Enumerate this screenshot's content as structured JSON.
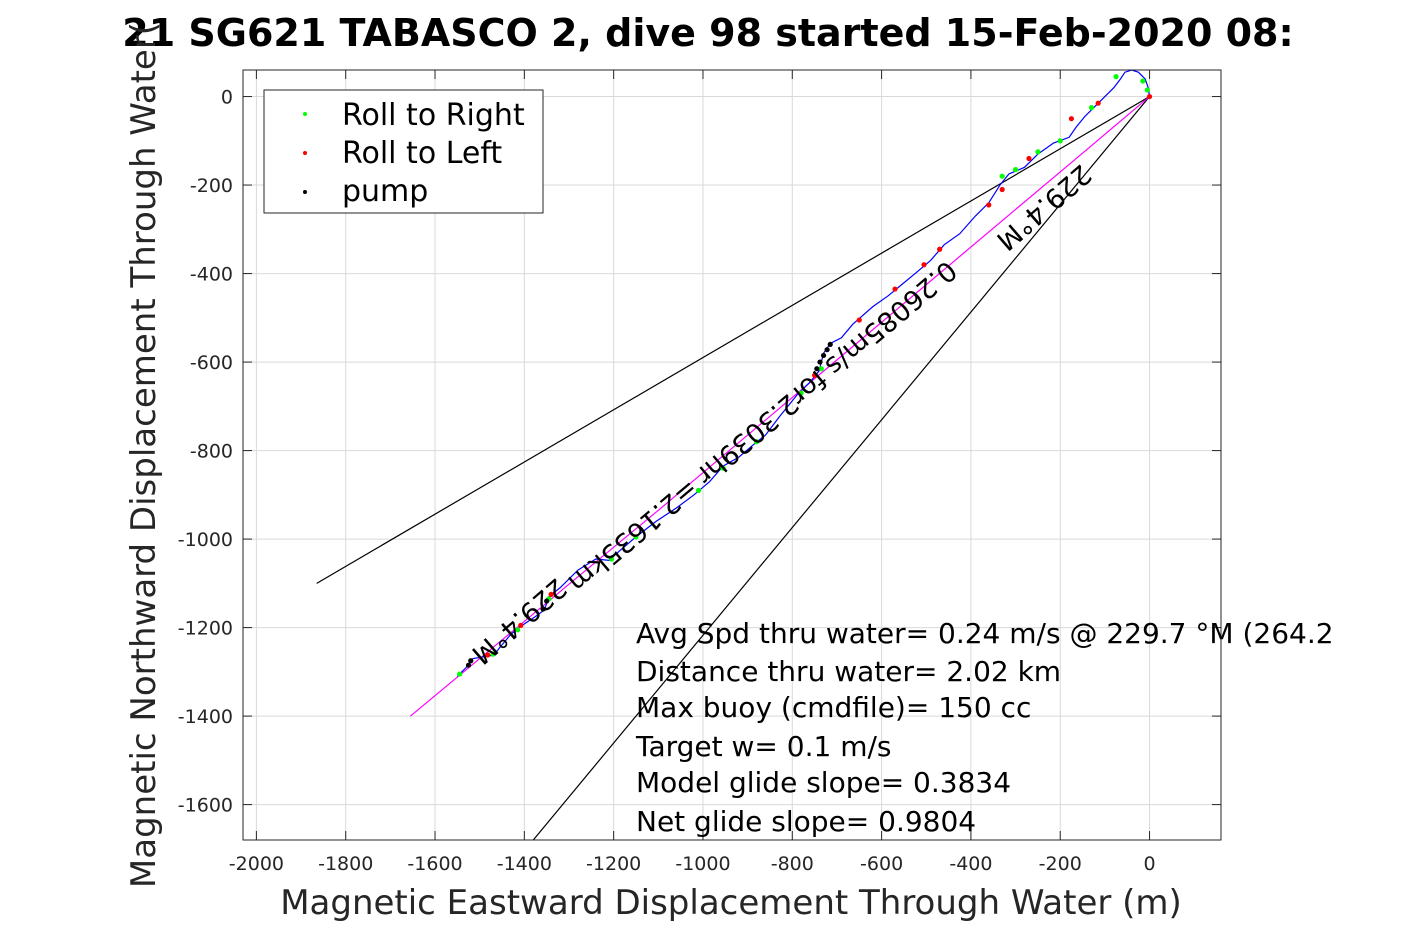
{
  "title": "21 SG621 TABASCO 2, dive 98 started 15-Feb-2020 08:",
  "chart_data": {
    "type": "scatter",
    "xlabel": "Magnetic Eastward Displacement Through Water (m)",
    "ylabel": "Magnetic Northward Displacement Through Water(",
    "xlim": [
      -2030,
      160
    ],
    "ylim": [
      -1680,
      60
    ],
    "xticks": [
      "-2000",
      "-1800",
      "-1600",
      "-1400",
      "-1200",
      "-1000",
      "-800",
      "-600",
      "-400",
      "-200",
      "0"
    ],
    "yticks": [
      "0",
      "-200",
      "-400",
      "-600",
      "-800",
      "-1000",
      "-1200",
      "-1400",
      "-1600"
    ],
    "grid": true,
    "legend_position": "top-left",
    "legend": [
      {
        "label": "Roll to Right",
        "color": "#00ff00"
      },
      {
        "label": "Roll to Left",
        "color": "#ff0000"
      },
      {
        "label": "pump",
        "color": "#000000"
      }
    ],
    "track": [
      [
        -1550,
        -1310
      ],
      [
        -1530,
        -1290
      ],
      [
        -1515,
        -1270
      ],
      [
        -1490,
        -1266
      ],
      [
        -1468,
        -1262
      ],
      [
        -1455,
        -1245
      ],
      [
        -1430,
        -1215
      ],
      [
        -1405,
        -1195
      ],
      [
        -1375,
        -1175
      ],
      [
        -1355,
        -1160
      ],
      [
        -1345,
        -1130
      ],
      [
        -1320,
        -1110
      ],
      [
        -1280,
        -1070
      ],
      [
        -1240,
        -1045
      ],
      [
        -1210,
        -1048
      ],
      [
        -1185,
        -1025
      ],
      [
        -1150,
        -995
      ],
      [
        -1105,
        -960
      ],
      [
        -1060,
        -930
      ],
      [
        -1020,
        -900
      ],
      [
        -985,
        -870
      ],
      [
        -955,
        -835
      ],
      [
        -920,
        -815
      ],
      [
        -885,
        -785
      ],
      [
        -860,
        -765
      ],
      [
        -830,
        -725
      ],
      [
        -790,
        -675
      ],
      [
        -760,
        -645
      ],
      [
        -740,
        -620
      ],
      [
        -730,
        -580
      ],
      [
        -715,
        -558
      ],
      [
        -690,
        -545
      ],
      [
        -665,
        -515
      ],
      [
        -620,
        -475
      ],
      [
        -585,
        -450
      ],
      [
        -555,
        -425
      ],
      [
        -525,
        -400
      ],
      [
        -490,
        -370
      ],
      [
        -460,
        -335
      ],
      [
        -425,
        -310
      ],
      [
        -390,
        -270
      ],
      [
        -360,
        -240
      ],
      [
        -335,
        -200
      ],
      [
        -315,
        -175
      ],
      [
        -280,
        -160
      ],
      [
        -250,
        -130
      ],
      [
        -215,
        -105
      ],
      [
        -180,
        -92
      ],
      [
        -165,
        -70
      ],
      [
        -145,
        -45
      ],
      [
        -120,
        -20
      ],
      [
        -100,
        0
      ],
      [
        -80,
        20
      ],
      [
        -65,
        40
      ],
      [
        -55,
        55
      ],
      [
        -40,
        60
      ],
      [
        -25,
        55
      ],
      [
        -10,
        40
      ],
      [
        -3,
        20
      ],
      [
        0,
        0
      ]
    ],
    "model_track": [
      [
        -1655,
        -1400
      ],
      [
        -1500,
        -1270
      ],
      [
        -1300,
        -1102
      ],
      [
        -1100,
        -935
      ],
      [
        -900,
        -765
      ],
      [
        -700,
        -595
      ],
      [
        -500,
        -425
      ],
      [
        -300,
        -255
      ],
      [
        -150,
        -128
      ],
      [
        0,
        0
      ]
    ],
    "cone_lines": [
      {
        "from": [
          -1865,
          -1100
        ],
        "to": [
          0,
          0
        ]
      },
      {
        "from": [
          -1380,
          -1680
        ],
        "to": [
          0,
          0
        ]
      }
    ],
    "roll_right_points": [
      [
        -1545,
        -1305
      ],
      [
        -1470,
        -1260
      ],
      [
        -1415,
        -1205
      ],
      [
        -1345,
        -1135
      ],
      [
        -1205,
        -1045
      ],
      [
        -1150,
        -995
      ],
      [
        -1010,
        -890
      ],
      [
        -955,
        -840
      ],
      [
        -880,
        -780
      ],
      [
        -780,
        -670
      ],
      [
        -735,
        -615
      ],
      [
        -330,
        -180
      ],
      [
        -300,
        -165
      ],
      [
        -250,
        -125
      ],
      [
        -200,
        -100
      ],
      [
        -130,
        -25
      ],
      [
        -75,
        45
      ],
      [
        -15,
        35
      ],
      [
        -5,
        15
      ]
    ],
    "roll_left_points": [
      [
        -1482,
        -1262
      ],
      [
        -1408,
        -1195
      ],
      [
        -1340,
        -1125
      ],
      [
        -750,
        -630
      ],
      [
        -650,
        -505
      ],
      [
        -570,
        -435
      ],
      [
        -505,
        -380
      ],
      [
        -470,
        -345
      ],
      [
        -360,
        -245
      ],
      [
        -330,
        -210
      ],
      [
        -270,
        -140
      ],
      [
        -175,
        -50
      ],
      [
        -115,
        -15
      ],
      [
        0,
        0
      ]
    ],
    "pump_points": [
      [
        -1525,
        -1285
      ],
      [
        -1520,
        -1275
      ],
      [
        -1358,
        -1158
      ],
      [
        -1350,
        -1140
      ],
      [
        -745,
        -615
      ],
      [
        -738,
        -600
      ],
      [
        -730,
        -585
      ],
      [
        -722,
        -572
      ],
      [
        -715,
        -560
      ]
    ],
    "rotated_labels": [
      {
        "text": "229.4°M",
        "x": -1425,
        "y": -1170,
        "angle": 139.2
      },
      {
        "text": "0.26085m/s for2.3039hr =2.1635km",
        "x": -880,
        "y": -730,
        "angle": 139.9
      },
      {
        "text": "229.4°M",
        "x": -250,
        "y": -235,
        "angle": 139.2
      }
    ],
    "annotations": [
      "Avg Spd thru water=  0.24 m/s @ 229.7 °M (264.2",
      "Distance thru water=  2.02 km",
      "Max buoy (cmdfile)= 150 cc",
      "Target w= 0.1 m/s",
      "Model glide slope= 0.3834",
      "Net glide slope= 0.9804"
    ]
  },
  "colors": {
    "track": "#0000ff",
    "model_track": "#ff00ff",
    "cone": "#000000",
    "grid": "#d9d9d9",
    "axes": "#262626"
  }
}
